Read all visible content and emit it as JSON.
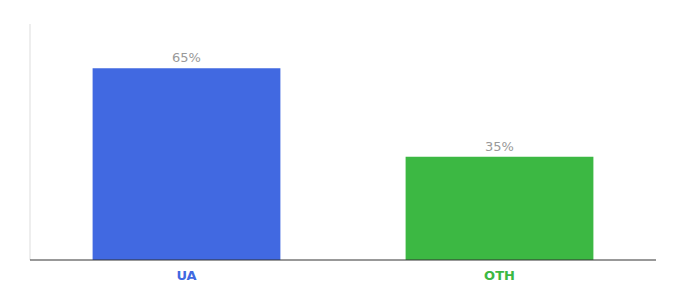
{
  "chart_data": {
    "type": "bar",
    "categories": [
      "UA",
      "OTH"
    ],
    "values": [
      65,
      35
    ],
    "value_labels": [
      "65%",
      "35%"
    ],
    "colors": [
      "#4169e1",
      "#3cb843"
    ],
    "ylim": [
      0,
      80
    ],
    "data_labels": true,
    "tick_labels": "x"
  }
}
